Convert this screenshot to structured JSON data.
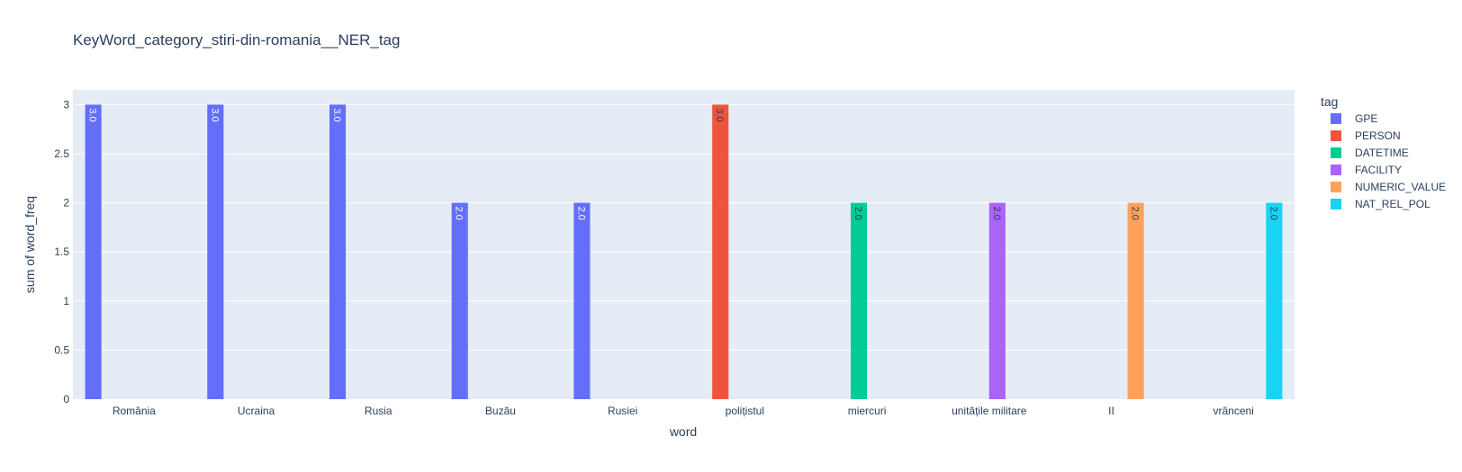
{
  "chart_data": {
    "type": "bar",
    "title": "KeyWord_category_stiri-din-romania__NER_tag",
    "xlabel": "word",
    "ylabel": "sum of word_freq",
    "ylim": [
      0,
      3.15
    ],
    "yticks": [
      0,
      0.5,
      1,
      1.5,
      2,
      2.5,
      3
    ],
    "ytick_labels": [
      "0",
      "0.5",
      "1",
      "1.5",
      "2",
      "2.5",
      "3"
    ],
    "categories": [
      "România",
      "Ucraina",
      "Rusia",
      "Buzău",
      "Rusiei",
      "polițistul",
      "miercuri",
      "unitățile militare",
      "II",
      "vrânceni"
    ],
    "legend_title": "tag",
    "legend_position": "right",
    "grid": true,
    "series": [
      {
        "name": "GPE",
        "color": "#636efa",
        "label_dark": false,
        "values": [
          3,
          3,
          3,
          2,
          2,
          null,
          null,
          null,
          null,
          null
        ],
        "labels": [
          "3.0",
          "3.0",
          "3.0",
          "2.0",
          "2.0",
          "",
          "",
          "",
          "",
          ""
        ]
      },
      {
        "name": "PERSON",
        "color": "#EF553B",
        "label_dark": true,
        "values": [
          null,
          null,
          null,
          null,
          null,
          3,
          null,
          null,
          null,
          null
        ],
        "labels": [
          "",
          "",
          "",
          "",
          "",
          "3.0",
          "",
          "",
          "",
          ""
        ]
      },
      {
        "name": "DATETIME",
        "color": "#00cc96",
        "label_dark": true,
        "values": [
          null,
          null,
          null,
          null,
          null,
          null,
          2,
          null,
          null,
          null
        ],
        "labels": [
          "",
          "",
          "",
          "",
          "",
          "",
          "2.0",
          "",
          "",
          ""
        ]
      },
      {
        "name": "FACILITY",
        "color": "#ab63fa",
        "label_dark": true,
        "values": [
          null,
          null,
          null,
          null,
          null,
          null,
          null,
          2,
          null,
          null
        ],
        "labels": [
          "",
          "",
          "",
          "",
          "",
          "",
          "",
          "2.0",
          "",
          ""
        ]
      },
      {
        "name": "NUMERIC_VALUE",
        "color": "#FFA15A",
        "label_dark": true,
        "values": [
          null,
          null,
          null,
          null,
          null,
          null,
          null,
          null,
          2,
          null
        ],
        "labels": [
          "",
          "",
          "",
          "",
          "",
          "",
          "",
          "",
          "2.0",
          ""
        ]
      },
      {
        "name": "NAT_REL_POL",
        "color": "#19d3f3",
        "label_dark": true,
        "values": [
          null,
          null,
          null,
          null,
          null,
          null,
          null,
          null,
          null,
          2
        ],
        "labels": [
          "",
          "",
          "",
          "",
          "",
          "",
          "",
          "",
          "",
          "2.0"
        ]
      }
    ]
  }
}
